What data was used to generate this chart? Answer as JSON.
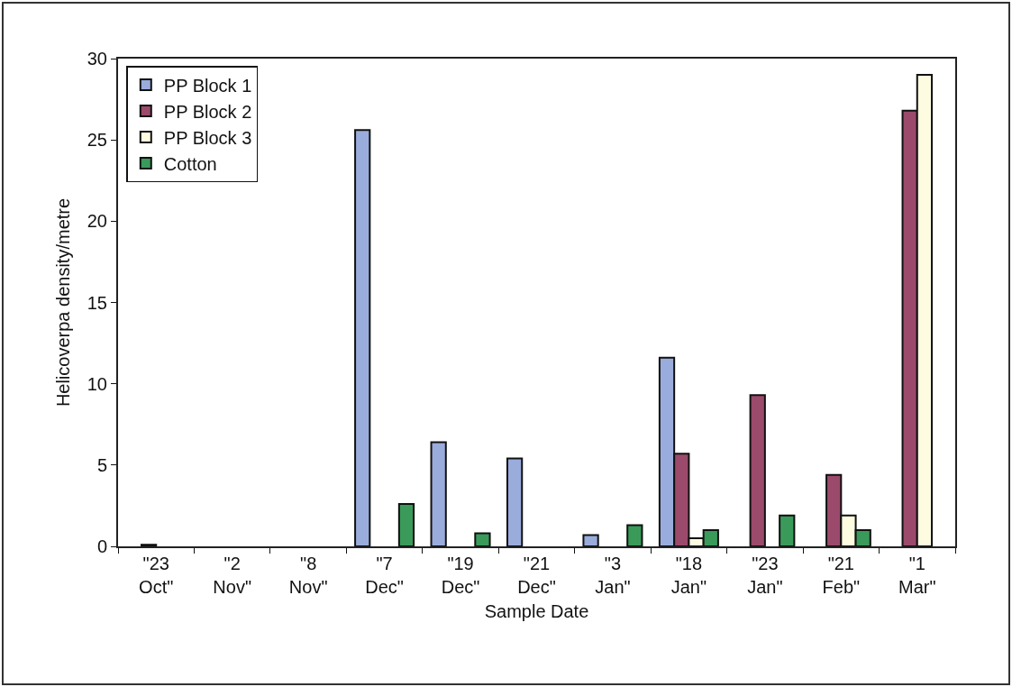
{
  "chart_data": {
    "type": "bar",
    "xlabel": "Sample Date",
    "ylabel": "Helicoverpa density/metre",
    "categories": [
      "\"23 Oct\"",
      "\"2 Nov\"",
      "\"8 Nov\"",
      "\"7 Dec\"",
      "\"19 Dec\"",
      "\"21 Dec\"",
      "\"3 Jan\"",
      "\"18 Jan\"",
      "\"23 Jan\"",
      "\"21 Feb\"",
      "\"1 Mar\""
    ],
    "series": [
      {
        "name": "PP Block 1",
        "color": "#9aacdc",
        "values": [
          null,
          null,
          null,
          25.6,
          6.4,
          5.4,
          0.7,
          11.6,
          null,
          null,
          null
        ]
      },
      {
        "name": "PP Block 2",
        "color": "#9b4a6b",
        "values": [
          0.1,
          null,
          null,
          null,
          null,
          null,
          null,
          5.7,
          9.3,
          4.4,
          26.8
        ]
      },
      {
        "name": "PP Block 3",
        "color": "#fdfbe0",
        "values": [
          null,
          null,
          null,
          null,
          null,
          null,
          null,
          0.5,
          null,
          1.9,
          29.0
        ]
      },
      {
        "name": "Cotton",
        "color": "#3a9a5a",
        "values": [
          null,
          null,
          null,
          2.6,
          0.8,
          null,
          1.3,
          1.0,
          1.9,
          1.0,
          null
        ]
      }
    ],
    "ylim": [
      0,
      30
    ],
    "yticks": [
      0,
      5,
      10,
      15,
      20,
      25,
      30
    ],
    "legend": "top left"
  }
}
